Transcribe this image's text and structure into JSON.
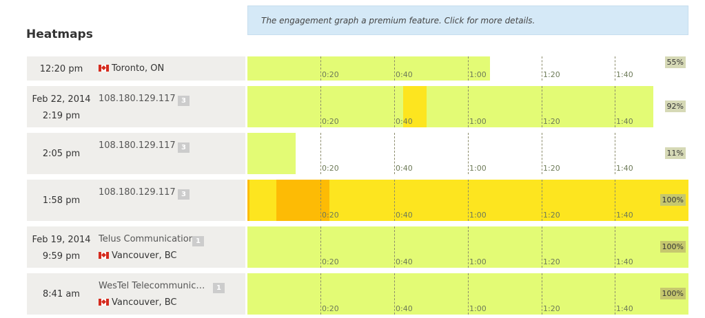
{
  "page": {
    "heading": "Heatmaps"
  },
  "notice": {
    "text": "The engagement graph a premium feature. Click for more details."
  },
  "ticks": [
    "0:20",
    "0:40",
    "1:00",
    "1:20",
    "1:40"
  ],
  "colors": {
    "low": "#e3fb75",
    "mid": "#fde51f",
    "high": "#fdbb05",
    "pct_bg_low": "#d6d9b6",
    "pct_bg_full": "#c6c86e"
  },
  "rows": [
    {
      "date": "",
      "time": "12:20 pm",
      "network": "",
      "badge": "",
      "location": "Toronto, ON",
      "flag": true,
      "percent": "55%",
      "fraction": 0.55,
      "segments": [
        {
          "from": 0,
          "to": 0.55,
          "level": "low"
        }
      ]
    },
    {
      "date": "Feb 22, 2014",
      "time": "2:19 pm",
      "network": "108.180.129.117",
      "badge": "3",
      "location": "",
      "flag": false,
      "percent": "92%",
      "fraction": 0.92,
      "segments": [
        {
          "from": 0,
          "to": 0.353,
          "level": "low"
        },
        {
          "from": 0.353,
          "to": 0.406,
          "level": "mid"
        },
        {
          "from": 0.406,
          "to": 0.92,
          "level": "low"
        }
      ]
    },
    {
      "date": "",
      "time": "2:05 pm",
      "network": "108.180.129.117",
      "badge": "3",
      "location": "",
      "flag": false,
      "percent": "11%",
      "fraction": 0.11,
      "segments": [
        {
          "from": 0,
          "to": 0.11,
          "level": "low"
        }
      ]
    },
    {
      "date": "",
      "time": "1:58 pm",
      "network": "108.180.129.117",
      "badge": "3",
      "location": "",
      "flag": false,
      "percent": "100%",
      "fraction": 1.0,
      "segments": [
        {
          "from": 0,
          "to": 0.005,
          "level": "high"
        },
        {
          "from": 0.005,
          "to": 0.066,
          "level": "mid"
        },
        {
          "from": 0.066,
          "to": 0.186,
          "level": "high"
        },
        {
          "from": 0.186,
          "to": 1.0,
          "level": "mid"
        }
      ]
    },
    {
      "date": "Feb 19, 2014",
      "time": "9:59 pm",
      "network": "Telus Communications",
      "badge": "1",
      "location": "Vancouver, BC",
      "flag": true,
      "percent": "100%",
      "fraction": 1.0,
      "segments": [
        {
          "from": 0,
          "to": 1.0,
          "level": "low"
        }
      ]
    },
    {
      "date": "",
      "time": "8:41 am",
      "network": "WesTel Telecommunicatio...",
      "badge": "1",
      "location": "Vancouver, BC",
      "flag": true,
      "percent": "100%",
      "fraction": 1.0,
      "segments": [
        {
          "from": 0,
          "to": 1.0,
          "level": "low"
        }
      ]
    }
  ]
}
